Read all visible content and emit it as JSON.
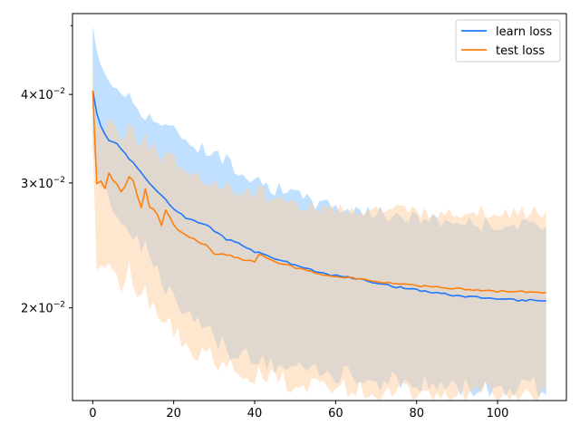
{
  "chart_data": {
    "type": "line",
    "title": "",
    "xlabel": "",
    "ylabel": "",
    "yscale": "log",
    "xlim": [
      -5,
      117
    ],
    "ylim": [
      0.0148,
      0.052
    ],
    "x_ticks": [
      0,
      20,
      40,
      60,
      80,
      100
    ],
    "y_ticks": [
      {
        "value": 0.02,
        "mantissa": "2",
        "exponent": "−2"
      },
      {
        "value": 0.03,
        "mantissa": "3",
        "exponent": "−2"
      },
      {
        "value": 0.04,
        "mantissa": "4",
        "exponent": "−2"
      }
    ],
    "legend": "top-right",
    "grid": false,
    "series": [
      {
        "name": "learn loss",
        "color": "#1f77ff",
        "band_color": "#9fd0ff",
        "keypoints": {
          "x": [
            0,
            1,
            2,
            4,
            6,
            8,
            10,
            12,
            15,
            18,
            20,
            23,
            25,
            28,
            30,
            33,
            36,
            40,
            45,
            50,
            55,
            60,
            65,
            70,
            75,
            80,
            85,
            90,
            95,
            100,
            105,
            110,
            112
          ],
          "mean": [
            0.0405,
            0.0375,
            0.036,
            0.0345,
            0.034,
            0.033,
            0.032,
            0.031,
            0.0295,
            0.0285,
            0.0275,
            0.0268,
            0.0265,
            0.0262,
            0.0257,
            0.025,
            0.0247,
            0.024,
            0.0235,
            0.023,
            0.0225,
            0.0222,
            0.022,
            0.0217,
            0.0214,
            0.0212,
            0.021,
            0.0208,
            0.0207,
            0.0206,
            0.0205,
            0.0205,
            0.0204
          ],
          "upper": [
            0.05,
            0.046,
            0.044,
            0.042,
            0.041,
            0.04,
            0.039,
            0.038,
            0.037,
            0.036,
            0.0355,
            0.0348,
            0.034,
            0.0335,
            0.033,
            0.0322,
            0.0315,
            0.0305,
            0.0295,
            0.0288,
            0.0282,
            0.0278,
            0.0275,
            0.0272,
            0.027,
            0.0268,
            0.0266,
            0.0264,
            0.0263,
            0.0262,
            0.0261,
            0.026,
            0.026
          ],
          "lower": [
            0.034,
            0.031,
            0.0295,
            0.0285,
            0.0275,
            0.0265,
            0.0255,
            0.0245,
            0.023,
            0.0215,
            0.0205,
            0.0195,
            0.019,
            0.0185,
            0.018,
            0.0175,
            0.0172,
            0.0168,
            0.0166,
            0.0164,
            0.0162,
            0.0161,
            0.0159,
            0.0158,
            0.0157,
            0.0156,
            0.0156,
            0.0155,
            0.0155,
            0.0155,
            0.0155,
            0.0155,
            0.0155
          ]
        }
      },
      {
        "name": "test loss",
        "color": "#ff7f0e",
        "band_color": "#ffcf9f",
        "keypoints": {
          "x": [
            0,
            1,
            2,
            3,
            4,
            5,
            6,
            7,
            8,
            9,
            10,
            11,
            12,
            13,
            14,
            15,
            16,
            17,
            18,
            19,
            20,
            22,
            25,
            28,
            30,
            33,
            36,
            40,
            41,
            45,
            50,
            55,
            60,
            65,
            70,
            75,
            80,
            85,
            90,
            95,
            100,
            105,
            110,
            112
          ],
          "mean": [
            0.0405,
            0.03,
            0.0302,
            0.0295,
            0.031,
            0.0302,
            0.0298,
            0.0292,
            0.0296,
            0.0306,
            0.0302,
            0.0288,
            0.0277,
            0.0295,
            0.0277,
            0.0275,
            0.027,
            0.0262,
            0.0274,
            0.0268,
            0.0262,
            0.0255,
            0.025,
            0.0245,
            0.0238,
            0.0238,
            0.0235,
            0.0232,
            0.0238,
            0.0232,
            0.0228,
            0.0224,
            0.0221,
            0.022,
            0.0218,
            0.0216,
            0.0215,
            0.0214,
            0.0213,
            0.0212,
            0.0211,
            0.0211,
            0.021,
            0.021
          ],
          "upper": [
            0.044,
            0.036,
            0.036,
            0.0355,
            0.0365,
            0.036,
            0.0355,
            0.035,
            0.0355,
            0.036,
            0.0355,
            0.0345,
            0.034,
            0.0355,
            0.034,
            0.0335,
            0.033,
            0.0325,
            0.0335,
            0.033,
            0.0325,
            0.0318,
            0.031,
            0.0305,
            0.0298,
            0.0295,
            0.0292,
            0.0288,
            0.0292,
            0.0285,
            0.028,
            0.0278,
            0.0276,
            0.0275,
            0.0274,
            0.0274,
            0.0273,
            0.0273,
            0.0273,
            0.0273,
            0.0273,
            0.0273,
            0.0273,
            0.0275
          ],
          "lower": [
            0.034,
            0.0225,
            0.023,
            0.0222,
            0.0232,
            0.0225,
            0.022,
            0.0215,
            0.0218,
            0.0225,
            0.022,
            0.021,
            0.0202,
            0.0215,
            0.02,
            0.0198,
            0.0192,
            0.0185,
            0.0195,
            0.019,
            0.0185,
            0.018,
            0.0175,
            0.0172,
            0.0168,
            0.0165,
            0.0163,
            0.016,
            0.0163,
            0.0159,
            0.0157,
            0.0156,
            0.0155,
            0.0154,
            0.0153,
            0.0153,
            0.0152,
            0.0152,
            0.0152,
            0.0152,
            0.0152,
            0.0152,
            0.0152,
            0.0152
          ]
        }
      }
    ]
  }
}
